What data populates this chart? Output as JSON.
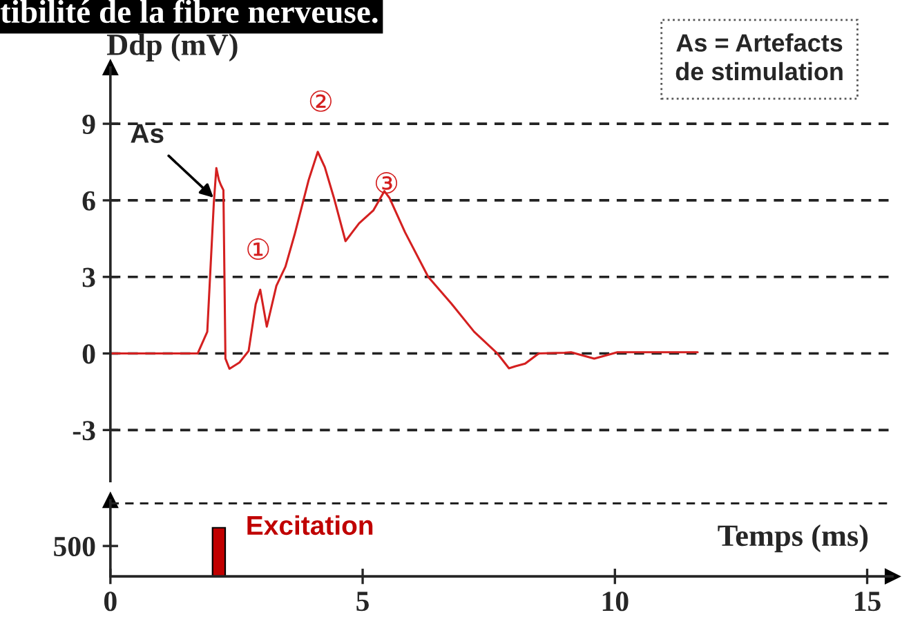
{
  "chart_data": [
    {
      "type": "line",
      "title": "tibilité de la fibre nerveuse.",
      "ylabel": "Ddp (mV)",
      "xlim": [
        0,
        15.5
      ],
      "ylim": [
        -5,
        11.2
      ],
      "yticks": [
        -3,
        0,
        3,
        6,
        9
      ],
      "grid": "y",
      "tick_labels": "y",
      "line_style": "solid",
      "annotations": [
        {
          "text": "As",
          "x": 2.1,
          "y": 6.0
        },
        "①",
        "②",
        "③",
        "As = Artefacts\nde stimulation"
      ],
      "series": [
        {
          "color": "#d42020",
          "x": [
            0,
            1.0,
            1.73,
            1.92,
            2.05,
            2.1,
            2.15,
            2.19,
            2.24,
            2.28,
            2.36,
            2.56,
            2.74,
            2.88,
            2.97,
            3.1,
            3.29,
            3.47,
            3.65,
            3.93,
            4.11,
            4.25,
            4.43,
            4.66,
            4.93,
            5.21,
            5.43,
            5.53,
            5.84,
            6.3,
            6.76,
            7.21,
            7.67,
            7.9,
            8.03,
            8.22,
            8.49,
            9.0,
            9.13,
            9.59,
            10.05,
            10.96,
            11.64
          ],
          "values": [
            0,
            0,
            0,
            0.85,
            5.9,
            7.26,
            6.8,
            6.6,
            6.4,
            -0.2,
            -0.6,
            -0.35,
            0.1,
            1.93,
            2.5,
            1.05,
            2.65,
            3.4,
            4.65,
            6.8,
            7.9,
            7.3,
            6.1,
            4.4,
            5.1,
            5.6,
            6.36,
            6.1,
            4.75,
            3.0,
            1.95,
            0.85,
            0.0,
            -0.58,
            -0.5,
            -0.4,
            0,
            0.03,
            0.05,
            -0.2,
            0.05,
            0.05,
            0.05
          ]
        }
      ]
    },
    {
      "type": "bar",
      "xlabel": "Temps (ms)",
      "xlim": [
        0,
        15.5
      ],
      "xticks": [
        0,
        5,
        10,
        15
      ],
      "ylim": [
        0,
        1250
      ],
      "yticks": [
        500
      ],
      "x": [
        2.15
      ],
      "values": [
        800
      ],
      "colors": [
        "#c00000"
      ],
      "ref_lines": [
        {
          "axis": "y",
          "value": 1200,
          "line_style": "dashed"
        }
      ],
      "annotations": [
        {
          "text": "Excitation",
          "x": 2.15,
          "y": 800
        }
      ]
    }
  ]
}
